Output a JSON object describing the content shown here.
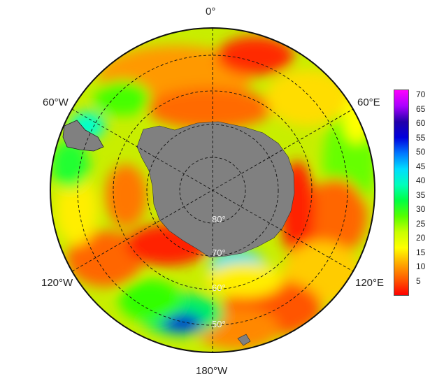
{
  "map": {
    "longitude_labels": {
      "top": "0°",
      "left_upper": "60°W",
      "right_upper": "60°E",
      "left_lower": "120°W",
      "right_lower": "120°E",
      "bottom": "180°W"
    },
    "latitude_labels": [
      "80°",
      "70°",
      "60°",
      "50°"
    ],
    "land_color": "#808080",
    "projection": "south polar stereographic"
  },
  "colorbar": {
    "ticks": [
      "70",
      "65",
      "60",
      "55",
      "50",
      "45",
      "40",
      "35",
      "30",
      "25",
      "20",
      "15",
      "10",
      "5"
    ],
    "range": [
      0,
      72
    ],
    "colors": [
      "#ff0000",
      "#ff5a00",
      "#ffaa00",
      "#ffff00",
      "#c8ff00",
      "#55ff00",
      "#00ff44",
      "#00ffbb",
      "#00ddff",
      "#0077ff",
      "#0000dd",
      "#2200aa",
      "#aa00ff",
      "#ff00ff"
    ]
  }
}
